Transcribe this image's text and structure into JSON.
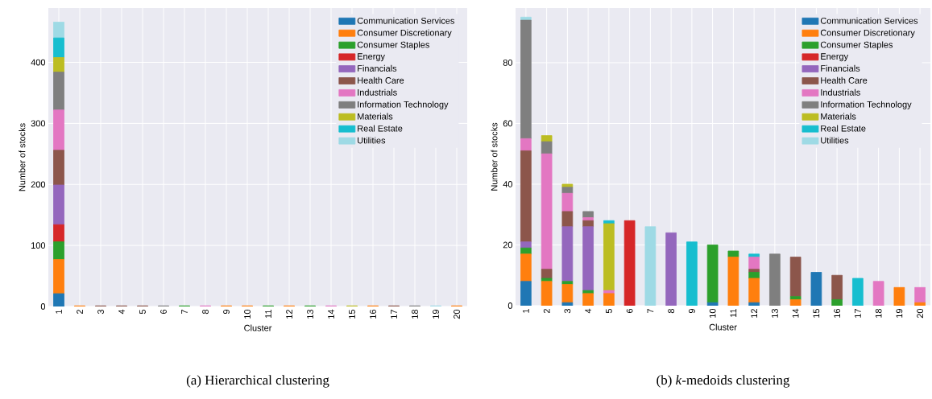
{
  "chart_data": [
    {
      "type": "bar",
      "stacked": true,
      "xlabel": "Cluster",
      "ylabel": "Number of stocks",
      "grid": true,
      "legend": "top right",
      "categories": [
        "1",
        "2",
        "3",
        "4",
        "5",
        "6",
        "7",
        "8",
        "9",
        "10",
        "11",
        "12",
        "13",
        "14",
        "15",
        "16",
        "17",
        "18",
        "19",
        "20"
      ],
      "ylim": [
        0,
        489
      ],
      "yticks": [
        0,
        100,
        200,
        300,
        400
      ],
      "annotations": [
        "(a) Hierarchical clustering"
      ],
      "series": [
        {
          "name": "Communication Services",
          "color": "#1f77b4",
          "values": [
            21,
            0,
            0,
            0,
            0,
            0,
            0,
            0,
            0,
            0,
            0,
            0,
            0,
            0,
            0,
            0,
            0,
            0,
            0,
            0
          ]
        },
        {
          "name": "Consumer Discretionary",
          "color": "#ff7f0e",
          "values": [
            56,
            1,
            0,
            0,
            0,
            0,
            0,
            0,
            1,
            1,
            0,
            1,
            0,
            0,
            0,
            1,
            0,
            0,
            0,
            1
          ]
        },
        {
          "name": "Consumer Staples",
          "color": "#2ca02c",
          "values": [
            29,
            0,
            0,
            0,
            0,
            0,
            1,
            0,
            0,
            0,
            1,
            0,
            1,
            0,
            0,
            0,
            0,
            0,
            0,
            0
          ]
        },
        {
          "name": "Energy",
          "color": "#d62728",
          "values": [
            28,
            0,
            0,
            0,
            0,
            0,
            0,
            0,
            0,
            0,
            0,
            0,
            0,
            0,
            0,
            0,
            0,
            0,
            0,
            0
          ]
        },
        {
          "name": "Financials",
          "color": "#9467bd",
          "values": [
            65,
            0,
            0,
            0,
            0,
            0,
            0,
            0,
            0,
            0,
            0,
            0,
            0,
            0,
            0,
            0,
            0,
            0,
            0,
            0
          ]
        },
        {
          "name": "Health Care",
          "color": "#8c564b",
          "values": [
            57,
            0,
            1,
            1,
            1,
            0,
            0,
            0,
            0,
            0,
            0,
            0,
            0,
            0,
            0,
            0,
            1,
            0,
            0,
            0
          ]
        },
        {
          "name": "Industrials",
          "color": "#e377c2",
          "values": [
            66,
            0,
            0,
            0,
            0,
            0,
            0,
            1,
            0,
            0,
            0,
            0,
            0,
            1,
            0,
            0,
            0,
            0,
            0,
            0
          ]
        },
        {
          "name": "Information Technology",
          "color": "#7f7f7f",
          "values": [
            62,
            0,
            0,
            0,
            0,
            1,
            0,
            0,
            0,
            0,
            0,
            0,
            0,
            0,
            0,
            0,
            0,
            1,
            0,
            0
          ]
        },
        {
          "name": "Materials",
          "color": "#bcbd22",
          "values": [
            24,
            0,
            0,
            0,
            0,
            0,
            0,
            0,
            0,
            0,
            0,
            0,
            0,
            0,
            1,
            0,
            0,
            0,
            0,
            0
          ]
        },
        {
          "name": "Real Estate",
          "color": "#17becf",
          "values": [
            32,
            0,
            0,
            0,
            0,
            0,
            0,
            0,
            0,
            0,
            0,
            0,
            0,
            0,
            0,
            0,
            0,
            0,
            0,
            0
          ]
        },
        {
          "name": "Utilities",
          "color": "#9edae5",
          "values": [
            26,
            0,
            0,
            0,
            0,
            0,
            0,
            0,
            0,
            0,
            0,
            0,
            0,
            0,
            0,
            0,
            0,
            0,
            1,
            0
          ]
        }
      ]
    },
    {
      "type": "bar",
      "stacked": true,
      "xlabel": "Cluster",
      "ylabel": "Number of stocks",
      "grid": true,
      "legend": "top right",
      "categories": [
        "1",
        "2",
        "3",
        "4",
        "5",
        "6",
        "7",
        "8",
        "9",
        "10",
        "11",
        "12",
        "13",
        "14",
        "15",
        "16",
        "17",
        "18",
        "19",
        "20"
      ],
      "ylim": [
        0,
        98
      ],
      "yticks": [
        0,
        20,
        40,
        60,
        80
      ],
      "annotations": [
        "(b) *k*-medoids clustering"
      ],
      "series": [
        {
          "name": "Communication Services",
          "color": "#1f77b4",
          "values": [
            8,
            0,
            1,
            0,
            0,
            0,
            0,
            0,
            0,
            1,
            0,
            1,
            0,
            0,
            11,
            0,
            0,
            0,
            0,
            0
          ]
        },
        {
          "name": "Consumer Discretionary",
          "color": "#ff7f0e",
          "values": [
            9,
            8,
            6,
            4,
            4,
            0,
            0,
            0,
            0,
            0,
            16,
            8,
            0,
            2,
            0,
            0,
            0,
            0,
            6,
            1
          ]
        },
        {
          "name": "Consumer Staples",
          "color": "#2ca02c",
          "values": [
            2,
            1,
            1,
            1,
            0,
            0,
            0,
            0,
            0,
            19,
            2,
            2,
            0,
            1,
            0,
            2,
            0,
            0,
            0,
            0
          ]
        },
        {
          "name": "Energy",
          "color": "#d62728",
          "values": [
            0,
            0,
            0,
            0,
            0,
            28,
            0,
            0,
            0,
            0,
            0,
            0,
            0,
            0,
            0,
            0,
            0,
            0,
            0,
            0
          ]
        },
        {
          "name": "Financials",
          "color": "#9467bd",
          "values": [
            2,
            0,
            18,
            21,
            0,
            0,
            0,
            24,
            0,
            0,
            0,
            0,
            0,
            0,
            0,
            0,
            0,
            0,
            0,
            0
          ]
        },
        {
          "name": "Health Care",
          "color": "#8c564b",
          "values": [
            30,
            3,
            5,
            2,
            0,
            0,
            0,
            0,
            0,
            0,
            0,
            1,
            0,
            13,
            0,
            8,
            0,
            0,
            0,
            0
          ]
        },
        {
          "name": "Industrials",
          "color": "#e377c2",
          "values": [
            4,
            38,
            6,
            1,
            1,
            0,
            0,
            0,
            0,
            0,
            0,
            4,
            0,
            0,
            0,
            0,
            0,
            8,
            0,
            5
          ]
        },
        {
          "name": "Information Technology",
          "color": "#7f7f7f",
          "values": [
            39,
            4,
            2,
            2,
            0,
            0,
            0,
            0,
            0,
            0,
            0,
            0,
            17,
            0,
            0,
            0,
            0,
            0,
            0,
            0
          ]
        },
        {
          "name": "Materials",
          "color": "#bcbd22",
          "values": [
            0,
            2,
            1,
            0,
            22,
            0,
            0,
            0,
            0,
            0,
            0,
            0,
            0,
            0,
            0,
            0,
            0,
            0,
            0,
            0
          ]
        },
        {
          "name": "Real Estate",
          "color": "#17becf",
          "values": [
            0,
            0,
            0,
            0,
            1,
            0,
            0,
            0,
            21,
            0,
            0,
            1,
            0,
            0,
            0,
            0,
            9,
            0,
            0,
            0
          ]
        },
        {
          "name": "Utilities",
          "color": "#9edae5",
          "values": [
            1,
            0,
            0,
            0,
            0,
            0,
            26,
            0,
            0,
            0,
            0,
            0,
            0,
            0,
            0,
            0,
            0,
            0,
            0,
            0
          ]
        }
      ]
    }
  ]
}
